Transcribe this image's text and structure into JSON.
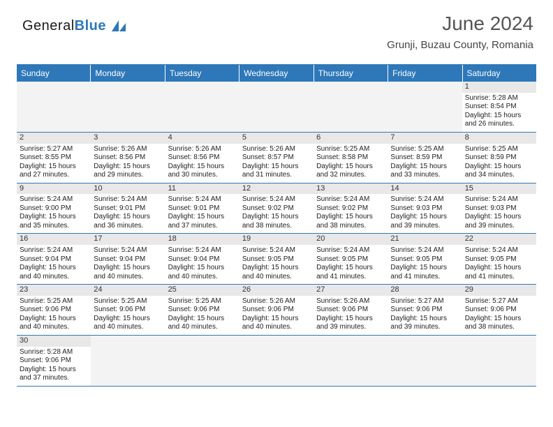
{
  "brand": {
    "part1": "General",
    "part2": "Blue"
  },
  "title": "June 2024",
  "location": "Grunji, Buzau County, Romania",
  "colors": {
    "header_bg": "#2e77b8",
    "header_text": "#ffffff",
    "daynum_bg": "#e8e8e8",
    "border": "#2e77b8",
    "text": "#222222",
    "title_color": "#555555"
  },
  "dow": [
    "Sunday",
    "Monday",
    "Tuesday",
    "Wednesday",
    "Thursday",
    "Friday",
    "Saturday"
  ],
  "weeks": [
    [
      null,
      null,
      null,
      null,
      null,
      null,
      {
        "d": "1",
        "sr": "5:28 AM",
        "ss": "8:54 PM",
        "dl": "15 hours and 26 minutes."
      }
    ],
    [
      {
        "d": "2",
        "sr": "5:27 AM",
        "ss": "8:55 PM",
        "dl": "15 hours and 27 minutes."
      },
      {
        "d": "3",
        "sr": "5:26 AM",
        "ss": "8:56 PM",
        "dl": "15 hours and 29 minutes."
      },
      {
        "d": "4",
        "sr": "5:26 AM",
        "ss": "8:56 PM",
        "dl": "15 hours and 30 minutes."
      },
      {
        "d": "5",
        "sr": "5:26 AM",
        "ss": "8:57 PM",
        "dl": "15 hours and 31 minutes."
      },
      {
        "d": "6",
        "sr": "5:25 AM",
        "ss": "8:58 PM",
        "dl": "15 hours and 32 minutes."
      },
      {
        "d": "7",
        "sr": "5:25 AM",
        "ss": "8:59 PM",
        "dl": "15 hours and 33 minutes."
      },
      {
        "d": "8",
        "sr": "5:25 AM",
        "ss": "8:59 PM",
        "dl": "15 hours and 34 minutes."
      }
    ],
    [
      {
        "d": "9",
        "sr": "5:24 AM",
        "ss": "9:00 PM",
        "dl": "15 hours and 35 minutes."
      },
      {
        "d": "10",
        "sr": "5:24 AM",
        "ss": "9:01 PM",
        "dl": "15 hours and 36 minutes."
      },
      {
        "d": "11",
        "sr": "5:24 AM",
        "ss": "9:01 PM",
        "dl": "15 hours and 37 minutes."
      },
      {
        "d": "12",
        "sr": "5:24 AM",
        "ss": "9:02 PM",
        "dl": "15 hours and 38 minutes."
      },
      {
        "d": "13",
        "sr": "5:24 AM",
        "ss": "9:02 PM",
        "dl": "15 hours and 38 minutes."
      },
      {
        "d": "14",
        "sr": "5:24 AM",
        "ss": "9:03 PM",
        "dl": "15 hours and 39 minutes."
      },
      {
        "d": "15",
        "sr": "5:24 AM",
        "ss": "9:03 PM",
        "dl": "15 hours and 39 minutes."
      }
    ],
    [
      {
        "d": "16",
        "sr": "5:24 AM",
        "ss": "9:04 PM",
        "dl": "15 hours and 40 minutes."
      },
      {
        "d": "17",
        "sr": "5:24 AM",
        "ss": "9:04 PM",
        "dl": "15 hours and 40 minutes."
      },
      {
        "d": "18",
        "sr": "5:24 AM",
        "ss": "9:04 PM",
        "dl": "15 hours and 40 minutes."
      },
      {
        "d": "19",
        "sr": "5:24 AM",
        "ss": "9:05 PM",
        "dl": "15 hours and 40 minutes."
      },
      {
        "d": "20",
        "sr": "5:24 AM",
        "ss": "9:05 PM",
        "dl": "15 hours and 41 minutes."
      },
      {
        "d": "21",
        "sr": "5:24 AM",
        "ss": "9:05 PM",
        "dl": "15 hours and 41 minutes."
      },
      {
        "d": "22",
        "sr": "5:24 AM",
        "ss": "9:05 PM",
        "dl": "15 hours and 41 minutes."
      }
    ],
    [
      {
        "d": "23",
        "sr": "5:25 AM",
        "ss": "9:06 PM",
        "dl": "15 hours and 40 minutes."
      },
      {
        "d": "24",
        "sr": "5:25 AM",
        "ss": "9:06 PM",
        "dl": "15 hours and 40 minutes."
      },
      {
        "d": "25",
        "sr": "5:25 AM",
        "ss": "9:06 PM",
        "dl": "15 hours and 40 minutes."
      },
      {
        "d": "26",
        "sr": "5:26 AM",
        "ss": "9:06 PM",
        "dl": "15 hours and 40 minutes."
      },
      {
        "d": "27",
        "sr": "5:26 AM",
        "ss": "9:06 PM",
        "dl": "15 hours and 39 minutes."
      },
      {
        "d": "28",
        "sr": "5:27 AM",
        "ss": "9:06 PM",
        "dl": "15 hours and 39 minutes."
      },
      {
        "d": "29",
        "sr": "5:27 AM",
        "ss": "9:06 PM",
        "dl": "15 hours and 38 minutes."
      }
    ],
    [
      {
        "d": "30",
        "sr": "5:28 AM",
        "ss": "9:06 PM",
        "dl": "15 hours and 37 minutes."
      },
      null,
      null,
      null,
      null,
      null,
      null
    ]
  ],
  "labels": {
    "sunrise": "Sunrise:",
    "sunset": "Sunset:",
    "daylight": "Daylight:"
  }
}
